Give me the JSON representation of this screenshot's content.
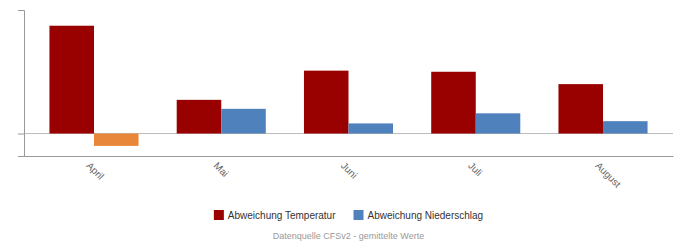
{
  "chart_data": {
    "type": "bar",
    "categories": [
      "April",
      "Mai",
      "Juni",
      "Juli",
      "August"
    ],
    "series": [
      {
        "name": "Abweichung Temperatur",
        "color": "#990000",
        "values": [
          4.8,
          1.5,
          2.8,
          2.75,
          2.2
        ]
      },
      {
        "name": "Abweichung Niederschlag",
        "color": "#4F81BD",
        "colors": [
          "#E8873A",
          "#4F81BD",
          "#4F81BD",
          "#4F81BD",
          "#4F81BD"
        ],
        "values": [
          -0.55,
          1.1,
          0.45,
          0.9,
          0.55
        ]
      }
    ],
    "ylim": [
      -1.0,
      5.5
    ],
    "yticks": [
      0
    ],
    "tick_labels": "x",
    "legend": "bottom",
    "annotations": [
      "Datenquelle CFSv2 - gemittelte Werte"
    ]
  }
}
